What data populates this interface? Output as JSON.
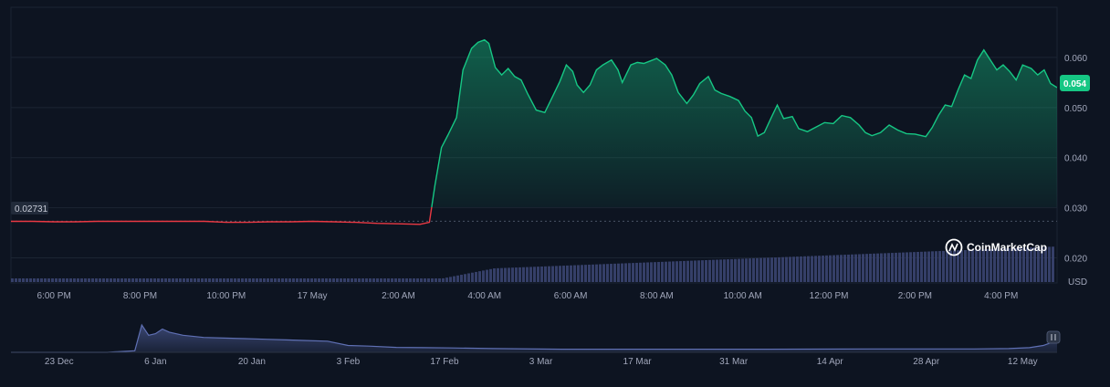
{
  "chart_data": [
    {
      "type": "line",
      "title": "",
      "baseline_value": 0.02731,
      "baseline_label": "0.02731",
      "current_value": 0.054,
      "current_label": "0.054",
      "volume_axis_label": "USD",
      "ylim": [
        0.015,
        0.07
      ],
      "y_ticks": [
        0.02,
        0.03,
        0.04,
        0.05,
        0.06
      ],
      "y_tick_labels": [
        "0.020",
        "0.030",
        "0.040",
        "0.050",
        "0.060"
      ],
      "x_ticks": [
        1,
        3,
        5,
        7,
        9,
        11,
        13,
        15,
        17,
        19,
        21,
        23
      ],
      "x_tick_labels": [
        "6:00 PM",
        "8:00 PM",
        "10:00 PM",
        "17 May",
        "2:00 AM",
        "4:00 AM",
        "6:00 AM",
        "8:00 AM",
        "10:00 AM",
        "12:00 PM",
        "2:00 PM",
        "4:00 PM"
      ],
      "xlim": [
        0,
        24.3
      ],
      "x_label_note": "x values are hours since 5:00 PM",
      "series": [
        {
          "name": "Price",
          "points": [
            [
              0.0,
              0.0273
            ],
            [
              0.5,
              0.0273
            ],
            [
              1.0,
              0.0272
            ],
            [
              1.5,
              0.0272
            ],
            [
              2.0,
              0.0273
            ],
            [
              2.5,
              0.0273
            ],
            [
              3.0,
              0.0273
            ],
            [
              3.5,
              0.0273
            ],
            [
              4.0,
              0.0273
            ],
            [
              4.5,
              0.0273
            ],
            [
              5.0,
              0.0271
            ],
            [
              5.5,
              0.0271
            ],
            [
              6.0,
              0.0272
            ],
            [
              6.5,
              0.0272
            ],
            [
              7.0,
              0.0273
            ],
            [
              7.5,
              0.0272
            ],
            [
              8.0,
              0.0271
            ],
            [
              8.5,
              0.0269
            ],
            [
              9.0,
              0.0268
            ],
            [
              9.5,
              0.0267
            ],
            [
              9.72,
              0.0271
            ],
            [
              9.85,
              0.0345
            ],
            [
              10.0,
              0.042
            ],
            [
              10.15,
              0.0445
            ],
            [
              10.35,
              0.048
            ],
            [
              10.5,
              0.0575
            ],
            [
              10.7,
              0.0618
            ],
            [
              10.85,
              0.063
            ],
            [
              11.0,
              0.0635
            ],
            [
              11.1,
              0.0628
            ],
            [
              11.25,
              0.058
            ],
            [
              11.4,
              0.0565
            ],
            [
              11.55,
              0.0578
            ],
            [
              11.7,
              0.0562
            ],
            [
              11.85,
              0.0555
            ],
            [
              12.0,
              0.0528
            ],
            [
              12.2,
              0.0495
            ],
            [
              12.4,
              0.049
            ],
            [
              12.6,
              0.0525
            ],
            [
              12.75,
              0.0552
            ],
            [
              12.9,
              0.0585
            ],
            [
              13.05,
              0.0572
            ],
            [
              13.15,
              0.0545
            ],
            [
              13.3,
              0.053
            ],
            [
              13.45,
              0.0545
            ],
            [
              13.6,
              0.0575
            ],
            [
              13.75,
              0.0585
            ],
            [
              13.95,
              0.0595
            ],
            [
              14.1,
              0.0575
            ],
            [
              14.2,
              0.055
            ],
            [
              14.4,
              0.0585
            ],
            [
              14.55,
              0.059
            ],
            [
              14.7,
              0.0588
            ],
            [
              14.85,
              0.0593
            ],
            [
              15.0,
              0.0598
            ],
            [
              15.2,
              0.0585
            ],
            [
              15.35,
              0.0565
            ],
            [
              15.5,
              0.053
            ],
            [
              15.7,
              0.0508
            ],
            [
              15.85,
              0.0525
            ],
            [
              16.0,
              0.0548
            ],
            [
              16.2,
              0.0562
            ],
            [
              16.35,
              0.0535
            ],
            [
              16.5,
              0.0528
            ],
            [
              16.7,
              0.0522
            ],
            [
              16.9,
              0.0514
            ],
            [
              17.05,
              0.0493
            ],
            [
              17.2,
              0.048
            ],
            [
              17.35,
              0.0443
            ],
            [
              17.5,
              0.045
            ],
            [
              17.65,
              0.0478
            ],
            [
              17.8,
              0.0505
            ],
            [
              17.95,
              0.0478
            ],
            [
              18.15,
              0.0482
            ],
            [
              18.3,
              0.0458
            ],
            [
              18.5,
              0.0452
            ],
            [
              18.7,
              0.0461
            ],
            [
              18.9,
              0.047
            ],
            [
              19.1,
              0.0468
            ],
            [
              19.3,
              0.0484
            ],
            [
              19.5,
              0.048
            ],
            [
              19.7,
              0.0465
            ],
            [
              19.85,
              0.045
            ],
            [
              20.0,
              0.0444
            ],
            [
              20.2,
              0.045
            ],
            [
              20.4,
              0.0465
            ],
            [
              20.6,
              0.0455
            ],
            [
              20.8,
              0.0448
            ],
            [
              21.0,
              0.0447
            ],
            [
              21.25,
              0.0442
            ],
            [
              21.4,
              0.046
            ],
            [
              21.55,
              0.0485
            ],
            [
              21.7,
              0.0505
            ],
            [
              21.85,
              0.0502
            ],
            [
              22.0,
              0.0535
            ],
            [
              22.15,
              0.0565
            ],
            [
              22.3,
              0.0558
            ],
            [
              22.45,
              0.0595
            ],
            [
              22.6,
              0.0615
            ],
            [
              22.75,
              0.0595
            ],
            [
              22.9,
              0.0575
            ],
            [
              23.05,
              0.0585
            ],
            [
              23.2,
              0.0572
            ],
            [
              23.35,
              0.0555
            ],
            [
              23.5,
              0.0585
            ],
            [
              23.7,
              0.0578
            ],
            [
              23.85,
              0.0565
            ],
            [
              24.0,
              0.0575
            ],
            [
              24.15,
              0.0548
            ],
            [
              24.3,
              0.054
            ]
          ]
        }
      ]
    },
    {
      "type": "area",
      "title": "",
      "x_tick_labels": [
        "23 Dec",
        "6 Jan",
        "20 Jan",
        "3 Feb",
        "17 Feb",
        "3 Mar",
        "17 Mar",
        "31 Mar",
        "14 Apr",
        "28 Apr",
        "12 May"
      ],
      "x_ticks": [
        7,
        21,
        35,
        49,
        63,
        77,
        91,
        105,
        119,
        133,
        147
      ],
      "xlim": [
        0,
        152
      ],
      "x_label_note": "x values are days since 16 Dec",
      "series": [
        {
          "name": "Navigator",
          "points": [
            [
              0,
              0.0
            ],
            [
              8,
              0.0
            ],
            [
              14,
              0.0
            ],
            [
              18,
              0.05
            ],
            [
              19,
              0.88
            ],
            [
              20,
              0.55
            ],
            [
              21,
              0.6
            ],
            [
              22,
              0.75
            ],
            [
              23,
              0.65
            ],
            [
              25,
              0.55
            ],
            [
              28,
              0.48
            ],
            [
              31,
              0.46
            ],
            [
              34,
              0.44
            ],
            [
              37,
              0.42
            ],
            [
              40,
              0.4
            ],
            [
              43,
              0.38
            ],
            [
              46,
              0.36
            ],
            [
              49,
              0.22
            ],
            [
              52,
              0.2
            ],
            [
              56,
              0.16
            ],
            [
              60,
              0.15
            ],
            [
              64,
              0.14
            ],
            [
              70,
              0.12
            ],
            [
              80,
              0.1
            ],
            [
              95,
              0.1
            ],
            [
              110,
              0.1
            ],
            [
              125,
              0.11
            ],
            [
              140,
              0.11
            ],
            [
              145,
              0.12
            ],
            [
              148,
              0.15
            ],
            [
              150,
              0.22
            ],
            [
              152,
              0.38
            ]
          ]
        }
      ]
    }
  ],
  "watermark": {
    "text": "CoinMarketCap"
  },
  "colors": {
    "background": "#0d1421",
    "up": "#16c784",
    "down": "#ea3943",
    "grid": "#1c2533",
    "volume": "#3a4470",
    "navigator": "#5f70b4",
    "axis_text": "#a1a7bb"
  }
}
